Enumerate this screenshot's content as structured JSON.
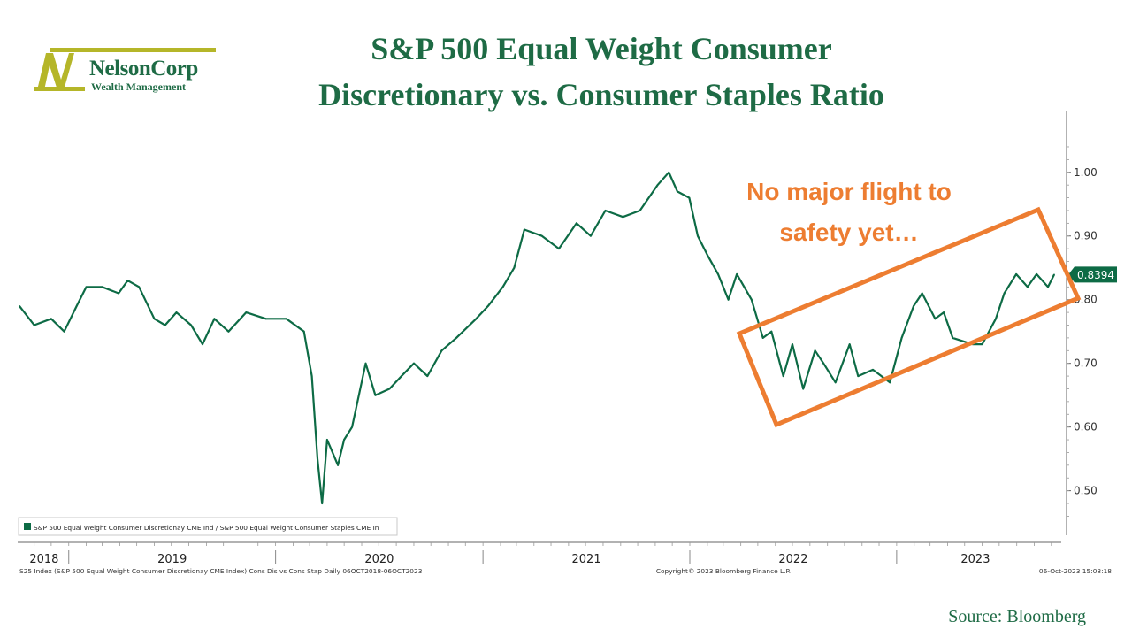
{
  "logo": {
    "name": "NelsonCorp",
    "subtitle": "Wealth Management"
  },
  "title": {
    "line1": "S&P 500 Equal Weight Consumer",
    "line2": "Discretionary vs. Consumer Staples Ratio"
  },
  "annotation": {
    "line1": "No major flight to",
    "line2": "safety yet…"
  },
  "legend_label": "S&P 500 Equal Weight Consumer Discretionay CME Ind / S&P 500 Equal Weight Consumer Staples CME In",
  "footer": {
    "left": "S25 Index (S&P 500 Equal Weight Consumer Discretionay CME Index) Cons Dis vs Cons Stap  Daily 06OCT2018-06OCT2023",
    "center": "Copyright© 2023 Bloomberg Finance L.P.",
    "right": "06-Oct-2023 15:08:18"
  },
  "source": "Source:  Bloomberg",
  "colors": {
    "line": "#0d6b45",
    "brand": "#1e6b45",
    "annotation": "#ed7d31",
    "logo_accent": "#b5b629"
  },
  "chart_data": {
    "type": "line",
    "title": "S&P 500 Equal Weight Consumer Discretionary vs. Consumer Staples Ratio",
    "ylim": [
      0.43,
      1.09
    ],
    "yticks": [
      0.5,
      0.6,
      0.7,
      0.8,
      0.9,
      1.0
    ],
    "ytick_labels": [
      "0.50",
      "0.60",
      "0.70",
      "0.80",
      "0.90",
      "1.00"
    ],
    "x_start": "2018-10-06",
    "x_end": "2023-10-06",
    "year_labels": [
      "2018",
      "2019",
      "2020",
      "2021",
      "2022",
      "2023"
    ],
    "last_value_label": "0.8394",
    "grid": false,
    "legend_position": "bottom-left",
    "series": [
      {
        "name": "S&P 500 Equal Weight Consumer Discretionay CME Ind / S&P 500 Equal Weight Consumer Staples CME In",
        "points": [
          [
            "2018-10-06",
            0.79
          ],
          [
            "2018-11-01",
            0.76
          ],
          [
            "2018-12-01",
            0.77
          ],
          [
            "2018-12-24",
            0.75
          ],
          [
            "2019-01-15",
            0.79
          ],
          [
            "2019-02-01",
            0.82
          ],
          [
            "2019-03-01",
            0.82
          ],
          [
            "2019-03-30",
            0.81
          ],
          [
            "2019-04-15",
            0.83
          ],
          [
            "2019-05-05",
            0.82
          ],
          [
            "2019-06-01",
            0.77
          ],
          [
            "2019-06-20",
            0.76
          ],
          [
            "2019-07-10",
            0.78
          ],
          [
            "2019-08-05",
            0.76
          ],
          [
            "2019-08-25",
            0.73
          ],
          [
            "2019-09-15",
            0.77
          ],
          [
            "2019-10-10",
            0.75
          ],
          [
            "2019-11-10",
            0.78
          ],
          [
            "2019-12-15",
            0.77
          ],
          [
            "2020-01-20",
            0.77
          ],
          [
            "2020-02-20",
            0.75
          ],
          [
            "2020-03-05",
            0.68
          ],
          [
            "2020-03-15",
            0.55
          ],
          [
            "2020-03-23",
            0.48
          ],
          [
            "2020-04-01",
            0.58
          ],
          [
            "2020-04-20",
            0.54
          ],
          [
            "2020-05-01",
            0.58
          ],
          [
            "2020-05-15",
            0.6
          ],
          [
            "2020-06-08",
            0.7
          ],
          [
            "2020-06-25",
            0.65
          ],
          [
            "2020-07-20",
            0.66
          ],
          [
            "2020-08-10",
            0.68
          ],
          [
            "2020-09-01",
            0.7
          ],
          [
            "2020-09-25",
            0.68
          ],
          [
            "2020-10-20",
            0.72
          ],
          [
            "2020-11-15",
            0.74
          ],
          [
            "2020-12-20",
            0.77
          ],
          [
            "2021-01-10",
            0.79
          ],
          [
            "2021-02-05",
            0.82
          ],
          [
            "2021-02-25",
            0.85
          ],
          [
            "2021-03-15",
            0.91
          ],
          [
            "2021-04-15",
            0.9
          ],
          [
            "2021-05-15",
            0.88
          ],
          [
            "2021-06-15",
            0.92
          ],
          [
            "2021-07-10",
            0.9
          ],
          [
            "2021-08-05",
            0.94
          ],
          [
            "2021-09-05",
            0.93
          ],
          [
            "2021-10-05",
            0.94
          ],
          [
            "2021-11-05",
            0.98
          ],
          [
            "2021-11-25",
            1.0
          ],
          [
            "2021-12-10",
            0.97
          ],
          [
            "2021-12-31",
            0.96
          ],
          [
            "2022-01-15",
            0.9
          ],
          [
            "2022-02-01",
            0.87
          ],
          [
            "2022-02-20",
            0.84
          ],
          [
            "2022-03-10",
            0.8
          ],
          [
            "2022-03-25",
            0.84
          ],
          [
            "2022-04-20",
            0.8
          ],
          [
            "2022-05-10",
            0.74
          ],
          [
            "2022-05-25",
            0.75
          ],
          [
            "2022-06-15",
            0.68
          ],
          [
            "2022-07-01",
            0.73
          ],
          [
            "2022-07-20",
            0.66
          ],
          [
            "2022-08-10",
            0.72
          ],
          [
            "2022-08-25",
            0.7
          ],
          [
            "2022-09-15",
            0.67
          ],
          [
            "2022-10-10",
            0.73
          ],
          [
            "2022-10-25",
            0.68
          ],
          [
            "2022-11-20",
            0.69
          ],
          [
            "2022-12-20",
            0.67
          ],
          [
            "2023-01-10",
            0.74
          ],
          [
            "2023-01-31",
            0.79
          ],
          [
            "2023-02-15",
            0.81
          ],
          [
            "2023-03-10",
            0.77
          ],
          [
            "2023-03-25",
            0.78
          ],
          [
            "2023-04-10",
            0.74
          ],
          [
            "2023-05-15",
            0.73
          ],
          [
            "2023-06-01",
            0.73
          ],
          [
            "2023-06-25",
            0.77
          ],
          [
            "2023-07-10",
            0.81
          ],
          [
            "2023-07-31",
            0.84
          ],
          [
            "2023-08-20",
            0.82
          ],
          [
            "2023-09-05",
            0.84
          ],
          [
            "2023-09-25",
            0.82
          ],
          [
            "2023-10-06",
            0.8394
          ]
        ]
      }
    ]
  }
}
